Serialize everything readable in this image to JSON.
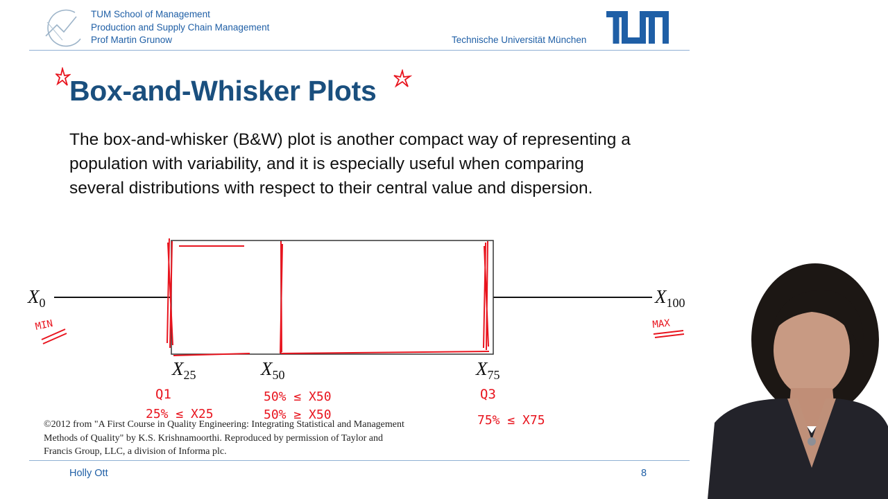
{
  "header": {
    "lines": [
      "TUM School of Management",
      "Production and Supply Chain Management",
      "Prof Martin Grunow"
    ],
    "university": "Technische Universität München",
    "logo_text": "TUM",
    "accent_color": "#1f5fa6"
  },
  "slide": {
    "title": "Box-and-Whisker Plots",
    "body": "The box-and-whisker (B&W) plot is another compact way of representing a population with variability, and it is especially useful when comparing several distributions with respect to their central value and dispersion.",
    "title_color": "#1a4f7e"
  },
  "diagram": {
    "labels": {
      "x0": "X",
      "x0_sub": "0",
      "x25": "X",
      "x25_sub": "25",
      "x50": "X",
      "x50_sub": "50",
      "x75": "X",
      "x75_sub": "75",
      "x100": "X",
      "x100_sub": "100"
    },
    "annotations": {
      "min": "MIN",
      "max": "MAX",
      "q1": "Q1",
      "q1_rule": "25% ≤ X25",
      "x50_rule_1": "50% ≤ X50",
      "x50_rule_2": "50% ≥ X50",
      "q3": "Q3",
      "q3_rule": "75% ≤ X75"
    },
    "ink_color": "#e8141e"
  },
  "credit": "©2012 from \"A First Course in Quality Engineering: Integrating Statistical and Management Methods of Quality\" by K.S. Krishnamoorthi. Reproduced by permission of Taylor and Francis Group, LLC, a division of Informa plc.",
  "footer": {
    "name": "Holly Ott",
    "page": "8"
  }
}
